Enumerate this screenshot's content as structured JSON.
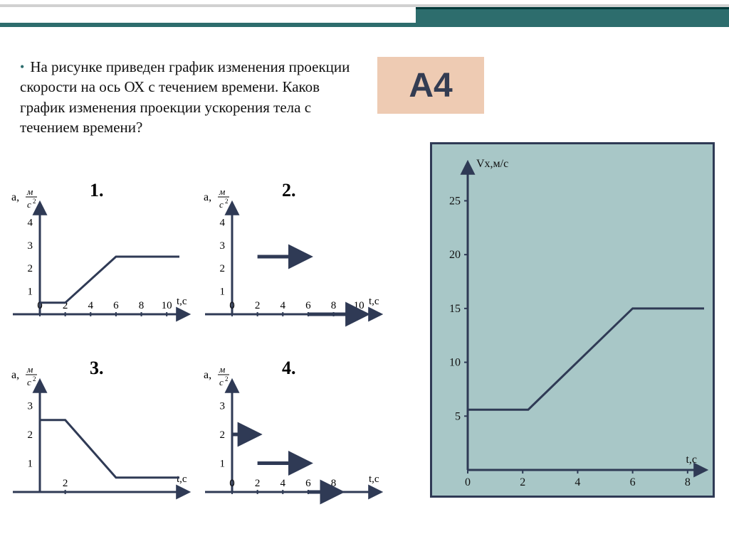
{
  "question": {
    "bullet": "•",
    "text": "На рисунке приведен график изменения проекции скорости на ось ОХ с течением времени. Каков график изменения проекции ускорения тела с течением времени?"
  },
  "badge": "А4",
  "bigchart": {
    "ylabel": "Vх,м/с",
    "xlabel": "t,с",
    "yTicks": [
      {
        "v": 5,
        "l": "5"
      },
      {
        "v": 10,
        "l": "10"
      },
      {
        "v": 15,
        "l": "15"
      },
      {
        "v": 20,
        "l": "20"
      },
      {
        "v": 25,
        "l": "25"
      }
    ],
    "xTicks": [
      {
        "v": 0,
        "l": "0"
      },
      {
        "v": 2,
        "l": "2"
      },
      {
        "v": 4,
        "l": "4"
      },
      {
        "v": 6,
        "l": "6"
      },
      {
        "v": 8,
        "l": "8"
      }
    ],
    "ylim": [
      0,
      28
    ],
    "xlim": [
      0,
      8.6
    ],
    "line": [
      [
        0,
        5.6
      ],
      [
        2.2,
        5.6
      ],
      [
        6,
        15
      ],
      [
        8.6,
        15
      ]
    ],
    "stroke": "#2f3a55",
    "stroke_width": 3,
    "axis_color": "#2f3a55",
    "bg": "#a8c7c7",
    "pad": {
      "l": 50,
      "r": 12,
      "t": 34,
      "b": 36
    },
    "label_fontsize": 16
  },
  "small": {
    "yAxisLabel": {
      "a": "a,",
      "num": "м",
      "den": "с",
      "sup": "2"
    },
    "xlabel": "t,с",
    "axis_color": "#2f3a55",
    "stroke": "#2f3a55",
    "charts": [
      {
        "num": "1.",
        "xTicks": [
          {
            "v": 0,
            "l": "0"
          },
          {
            "v": 2,
            "l": "2"
          },
          {
            "v": 4,
            "l": "4"
          },
          {
            "v": 6,
            "l": "6"
          },
          {
            "v": 8,
            "l": "8"
          },
          {
            "v": 10,
            "l": "10"
          }
        ],
        "yTicks": [
          {
            "v": 1,
            "l": "1"
          },
          {
            "v": 2,
            "l": "2"
          },
          {
            "v": 3,
            "l": "3"
          },
          {
            "v": 4,
            "l": "4"
          }
        ],
        "xlim": [
          0,
          11
        ],
        "ylim": [
          0,
          5
        ],
        "line": [
          [
            0,
            0.5
          ],
          [
            2,
            0.5
          ],
          [
            6,
            2.5
          ],
          [
            11,
            2.5
          ]
        ],
        "arrow": false
      },
      {
        "num": "2.",
        "xTicks": [
          {
            "v": 0,
            "l": "0"
          },
          {
            "v": 2,
            "l": "2"
          },
          {
            "v": 4,
            "l": "4"
          },
          {
            "v": 6,
            "l": "6"
          },
          {
            "v": 8,
            "l": "8"
          },
          {
            "v": 10,
            "l": "10"
          }
        ],
        "yTicks": [
          {
            "v": 1,
            "l": "1"
          },
          {
            "v": 2,
            "l": "2"
          },
          {
            "v": 3,
            "l": "3"
          },
          {
            "v": 4,
            "l": "4"
          }
        ],
        "xlim": [
          0,
          11
        ],
        "ylim": [
          0,
          5
        ],
        "segments": [
          {
            "pts": [
              [
                2,
                2.5
              ],
              [
                6,
                2.5
              ]
            ],
            "arrow": true,
            "w": 5
          },
          {
            "pts": [
              [
                6,
                0
              ],
              [
                10.5,
                0
              ]
            ],
            "arrow": true,
            "w": 5
          }
        ]
      },
      {
        "num": "3.",
        "xTicks": [
          {
            "v": 2,
            "l": "2"
          }
        ],
        "yTicks": [
          {
            "v": 1,
            "l": "1"
          },
          {
            "v": 2,
            "l": "2"
          },
          {
            "v": 3,
            "l": "3"
          }
        ],
        "xlim": [
          0,
          11
        ],
        "ylim": [
          0,
          4
        ],
        "line": [
          [
            0,
            2.5
          ],
          [
            2,
            2.5
          ],
          [
            6,
            0.5
          ],
          [
            11,
            0.5
          ]
        ],
        "arrow": false
      },
      {
        "num": "4.",
        "xTicks": [
          {
            "v": 0,
            "l": "0"
          },
          {
            "v": 2,
            "l": "2"
          },
          {
            "v": 4,
            "l": "4"
          },
          {
            "v": 6,
            "l": "6"
          },
          {
            "v": 8,
            "l": "8"
          }
        ],
        "yTicks": [
          {
            "v": 1,
            "l": "1"
          },
          {
            "v": 2,
            "l": "2"
          },
          {
            "v": 3,
            "l": "3"
          }
        ],
        "xlim": [
          0,
          11
        ],
        "ylim": [
          0,
          4
        ],
        "segments": [
          {
            "pts": [
              [
                0,
                2
              ],
              [
                2,
                2
              ]
            ],
            "arrow": true,
            "w": 5
          },
          {
            "pts": [
              [
                2,
                1
              ],
              [
                6,
                1
              ]
            ],
            "arrow": true,
            "w": 5
          },
          {
            "pts": [
              [
                6,
                0
              ],
              [
                8.5,
                0
              ]
            ],
            "arrow": true,
            "w": 5
          }
        ]
      }
    ]
  },
  "colors": {
    "axis": "#2f3a55",
    "accent": "#2d6d6d"
  },
  "font": {
    "question": 21,
    "badge": 48,
    "tick": 14,
    "num": 26
  }
}
